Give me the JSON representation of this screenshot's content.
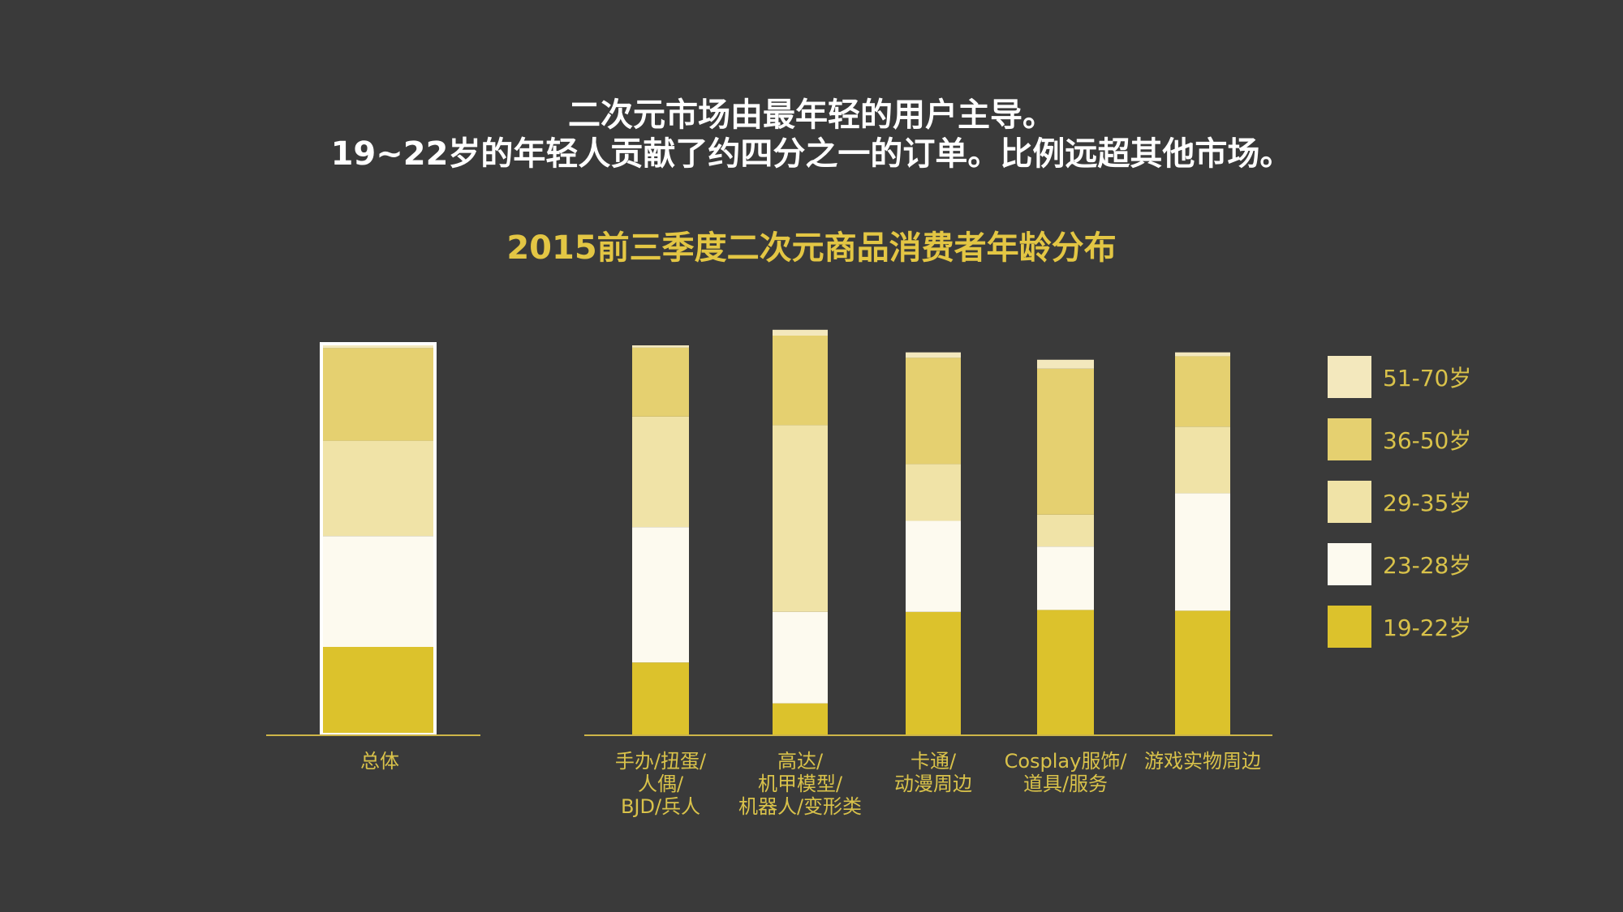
{
  "headline": {
    "line1": "二次元市场由最年轻的用户主导。",
    "line2": "19~22岁的年轻人贡献了约四分之一的订单。比例远超其他市场。"
  },
  "chart_data": {
    "type": "bar",
    "stacked": true,
    "title": "2015前三季度二次元商品消费者年龄分布",
    "xlabel": "",
    "ylabel": "",
    "ylim": [
      0,
      100
    ],
    "grid": false,
    "legend_position": "right",
    "categories": [
      [
        "总体"
      ],
      [
        "手办/扭蛋/",
        "人偶/",
        "BJD/兵人"
      ],
      [
        "高达/",
        "机甲模型/",
        "机器人/变形类"
      ],
      [
        "卡通/",
        "动漫周边"
      ],
      [
        "Cosplay服饰/",
        "道具/服务"
      ],
      [
        "游戏实物周边"
      ]
    ],
    "series": [
      {
        "name": "19-22岁",
        "color": "#dcc22c",
        "values": [
          22.5,
          18.5,
          8.0,
          31.5,
          32.0,
          31.8
        ]
      },
      {
        "name": "23-28岁",
        "color": "#fdfaef",
        "values": [
          28.5,
          34.8,
          23.5,
          23.4,
          16.3,
          30.2
        ]
      },
      {
        "name": "29-35岁",
        "color": "#f0e3a7",
        "values": [
          24.5,
          28.4,
          48.0,
          14.6,
          8.2,
          17.1
        ]
      },
      {
        "name": "36-50岁",
        "color": "#e5d070",
        "values": [
          23.8,
          17.7,
          23.0,
          27.3,
          37.5,
          18.1
        ]
      },
      {
        "name": "51-70岁",
        "color": "#f3e8bd",
        "values": [
          0.7,
          0.6,
          1.5,
          1.4,
          2.3,
          1.0
        ]
      }
    ]
  }
}
